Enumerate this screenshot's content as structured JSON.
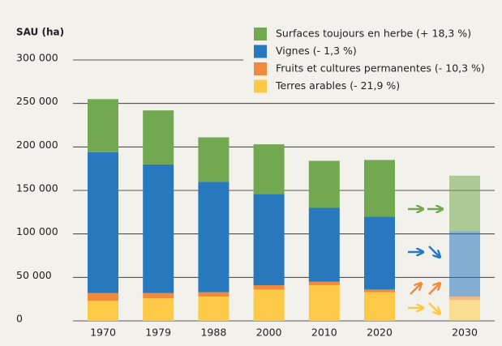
{
  "chart_data": {
    "type": "stacked_bar",
    "y_label": "SAU (ha)",
    "categories": [
      "1970",
      "1979",
      "1988",
      "2000",
      "2010",
      "2020",
      "2030"
    ],
    "series": [
      {
        "name": "Terres arables (- 21,9 %)",
        "color": "#fcca46",
        "values": [
          23000,
          26000,
          28000,
          36000,
          41000,
          33000,
          24000
        ]
      },
      {
        "name": "Fruits et cultures permanentes (- 10,3 %)",
        "color": "#f08a3c",
        "values": [
          9000,
          6000,
          5000,
          5000,
          4000,
          3000,
          4000
        ]
      },
      {
        "name": "Vignes (- 1,3 %)",
        "color": "#2878bd",
        "values": [
          162000,
          148000,
          127000,
          105000,
          85000,
          84000,
          75000
        ]
      },
      {
        "name": "Surfaces toujours en herbe (+ 18,3 %)",
        "color": "#72a84f",
        "values": [
          61000,
          62000,
          51000,
          57000,
          54000,
          65000,
          64000
        ]
      }
    ],
    "ylim": [
      0,
      300000
    ],
    "yticks": [
      0,
      {
        "value": 50000,
        "label": "50 000"
      },
      {
        "value": 100000,
        "label": "100 000"
      },
      {
        "value": 150000,
        "label": "150 000"
      },
      {
        "value": 200000,
        "label": "200 000"
      },
      {
        "value": 250000,
        "label": "250 000"
      },
      {
        "value": 300000,
        "label": "300 000"
      }
    ],
    "grid": true,
    "legend": "top-right"
  }
}
